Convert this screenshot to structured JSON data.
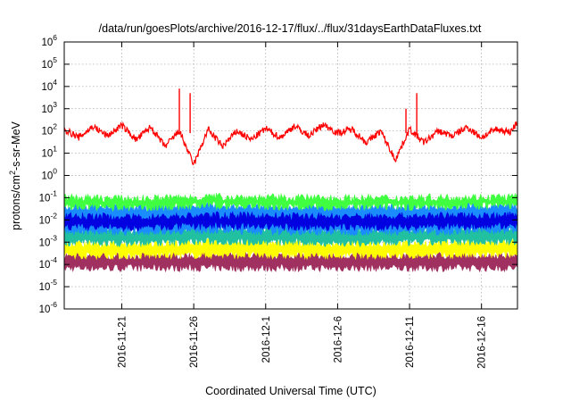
{
  "chart_data": {
    "type": "line",
    "title": "/data/run/goesPlots/archive/2016-12-17/flux/../flux/31daysEarthDataFluxes.txt",
    "xlabel": "Coordinated Universal Time (UTC)",
    "ylabel_parts": [
      "protons/cm",
      "2",
      "-s-sr-MeV"
    ],
    "yscale": "log",
    "ylim": [
      1e-06,
      1000000.0
    ],
    "xlim": [
      "2016-11-17T00:00",
      "2016-12-18T12:00"
    ],
    "grid": true,
    "y_ticks": [
      {
        "value": 1e-06,
        "base": "10",
        "exp": "-6"
      },
      {
        "value": 1e-05,
        "base": "10",
        "exp": "-5"
      },
      {
        "value": 0.0001,
        "base": "10",
        "exp": "-4"
      },
      {
        "value": 0.001,
        "base": "10",
        "exp": "-3"
      },
      {
        "value": 0.01,
        "base": "10",
        "exp": "-2"
      },
      {
        "value": 0.1,
        "base": "10",
        "exp": "-1"
      },
      {
        "value": 1,
        "base": "10",
        "exp": "0"
      },
      {
        "value": 10,
        "base": "10",
        "exp": "1"
      },
      {
        "value": 100,
        "base": "10",
        "exp": "2"
      },
      {
        "value": 1000,
        "base": "10",
        "exp": "3"
      },
      {
        "value": 10000,
        "base": "10",
        "exp": "4"
      },
      {
        "value": 100000,
        "base": "10",
        "exp": "5"
      },
      {
        "value": 1000000,
        "base": "10",
        "exp": "6"
      }
    ],
    "x_ticks": [
      {
        "date": "2016-11-21",
        "label": "2016-11-21"
      },
      {
        "date": "2016-11-26",
        "label": "2016-11-26"
      },
      {
        "date": "2016-12-01",
        "label": "2016-12-1"
      },
      {
        "date": "2016-12-06",
        "label": "2016-12-6"
      },
      {
        "date": "2016-12-11",
        "label": "2016-12-11"
      },
      {
        "date": "2016-12-16",
        "label": "2016-12-16"
      }
    ],
    "series": [
      {
        "color": "#a03060",
        "band": true,
        "low": [
          7e-05,
          7e-05,
          7e-05,
          7e-05,
          7e-05,
          7e-05,
          7e-05
        ],
        "high": [
          0.00025,
          0.00024,
          0.00026,
          0.00025,
          0.00024,
          0.00025,
          0.00026
        ],
        "x": [
          "2016-11-17",
          "2016-11-22",
          "2016-11-27",
          "2016-12-02",
          "2016-12-07",
          "2016-12-12",
          "2016-12-18T12:00"
        ]
      },
      {
        "color": "#ffff00",
        "band": true,
        "low": [
          0.00026,
          0.00025,
          0.00027,
          0.00026,
          0.00025,
          0.00026,
          0.00027
        ],
        "high": [
          0.0009,
          0.0008,
          0.001,
          0.0009,
          0.00085,
          0.0009,
          0.001
        ],
        "x": [
          "2016-11-17",
          "2016-11-22",
          "2016-11-27",
          "2016-12-02",
          "2016-12-07",
          "2016-12-12",
          "2016-12-18T12:00"
        ]
      },
      {
        "color": "#20c0a0",
        "band": true,
        "low": [
          0.001,
          0.0009,
          0.0011,
          0.001,
          0.0009,
          0.001,
          0.0011
        ],
        "high": [
          0.004,
          0.0035,
          0.0045,
          0.004,
          0.0038,
          0.004,
          0.0045
        ],
        "x": [
          "2016-11-17",
          "2016-11-22",
          "2016-11-27",
          "2016-12-02",
          "2016-12-07",
          "2016-12-12",
          "2016-12-18T12:00"
        ]
      },
      {
        "color": "#1a8cff",
        "band": true,
        "low": [
          0.003,
          0.003,
          0.0035,
          0.003,
          0.003,
          0.003,
          0.0035
        ],
        "high": [
          0.04,
          0.035,
          0.045,
          0.04,
          0.038,
          0.04,
          0.045
        ],
        "x": [
          "2016-11-17",
          "2016-11-22",
          "2016-11-27",
          "2016-12-02",
          "2016-12-07",
          "2016-12-12",
          "2016-12-18T12:00"
        ]
      },
      {
        "color": "#40ff40",
        "band": true,
        "low": [
          0.04,
          0.035,
          0.045,
          0.04,
          0.038,
          0.04,
          0.045
        ],
        "high": [
          0.1,
          0.09,
          0.11,
          0.1,
          0.095,
          0.1,
          0.11
        ],
        "x": [
          "2016-11-17",
          "2016-11-22",
          "2016-11-27",
          "2016-12-02",
          "2016-12-07",
          "2016-12-12",
          "2016-12-18T12:00"
        ]
      },
      {
        "color": "#0000e0",
        "band": true,
        "low": [
          0.005,
          0.0045,
          0.0055,
          0.005,
          0.0048,
          0.005,
          0.0055
        ],
        "high": [
          0.015,
          0.013,
          0.016,
          0.015,
          0.014,
          0.015,
          0.016
        ],
        "x": [
          "2016-11-17",
          "2016-11-22",
          "2016-11-27",
          "2016-12-02",
          "2016-12-07",
          "2016-12-12",
          "2016-12-18T12:00"
        ]
      },
      {
        "color": "#ff0000",
        "band": false,
        "x": [
          "2016-11-17",
          "2016-11-18",
          "2016-11-19",
          "2016-11-20",
          "2016-11-21",
          "2016-11-22",
          "2016-11-23",
          "2016-11-24",
          "2016-11-25",
          "2016-11-26",
          "2016-11-27",
          "2016-11-28",
          "2016-11-29",
          "2016-11-30",
          "2016-12-01",
          "2016-12-02",
          "2016-12-03",
          "2016-12-04",
          "2016-12-05",
          "2016-12-06",
          "2016-12-07",
          "2016-12-08",
          "2016-12-09",
          "2016-12-10",
          "2016-12-11",
          "2016-12-12",
          "2016-12-13",
          "2016-12-14",
          "2016-12-15",
          "2016-12-16",
          "2016-12-17",
          "2016-12-18",
          "2016-12-18T12:00"
        ],
        "values": [
          120,
          50,
          160,
          60,
          180,
          40,
          150,
          20,
          100,
          3,
          120,
          20,
          100,
          40,
          130,
          50,
          170,
          60,
          200,
          80,
          120,
          30,
          100,
          5,
          120,
          30,
          100,
          60,
          150,
          50,
          120,
          90,
          250
        ]
      },
      {
        "color": "#ff0000",
        "band": false,
        "spikes": true,
        "x": [
          "2016-11-25",
          "2016-11-25T18:00",
          "2016-12-10T18:00",
          "2016-12-11T12:00"
        ],
        "values": [
          8000,
          5000,
          1000,
          5000
        ]
      }
    ]
  }
}
